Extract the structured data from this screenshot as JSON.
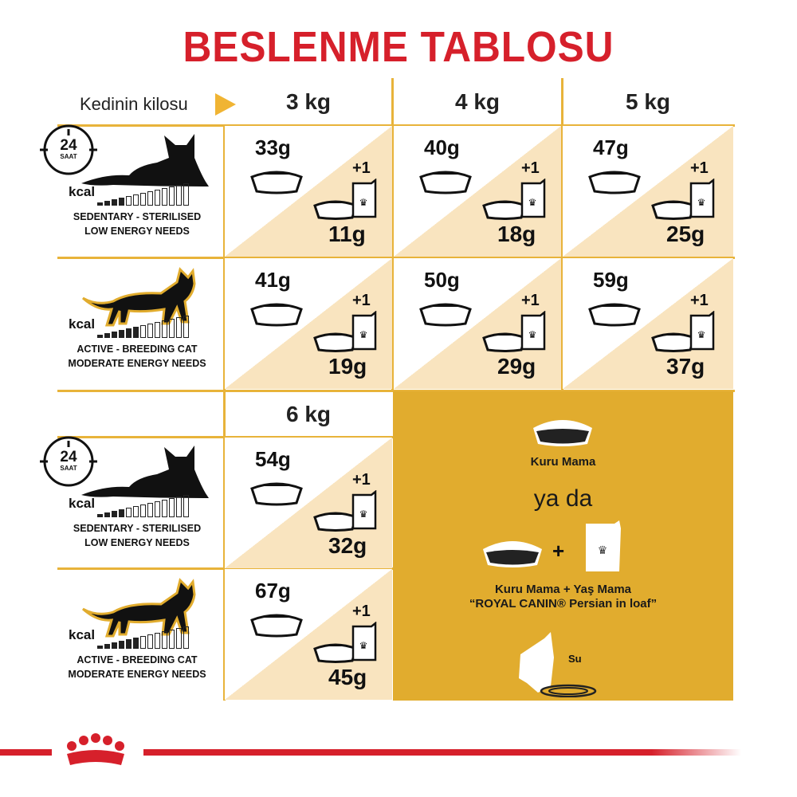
{
  "title": "BESLENME TABLOSU",
  "weight_label": "Kedinin kilosu",
  "weights": [
    "3 kg",
    "4 kg",
    "5 kg",
    "6 kg"
  ],
  "plus_label": "+1",
  "profiles": {
    "sedentary": {
      "clock": "24",
      "clock_unit": "SAAT",
      "kcal": "kcal",
      "line1": "SEDENTARY - STERILISED",
      "line2": "LOW ENERGY NEEDS",
      "energy_level": 4,
      "energy_total": 13
    },
    "active": {
      "kcal": "kcal",
      "line1": "ACTIVE - BREEDING CAT",
      "line2": "MODERATE ENERGY NEEDS",
      "energy_level": 6,
      "energy_total": 13
    }
  },
  "table": {
    "sedentary": [
      {
        "dry": "33g",
        "wet": "11g"
      },
      {
        "dry": "40g",
        "wet": "18g"
      },
      {
        "dry": "47g",
        "wet": "25g"
      },
      {
        "dry": "54g",
        "wet": "32g"
      }
    ],
    "active": [
      {
        "dry": "41g",
        "wet": "19g"
      },
      {
        "dry": "50g",
        "wet": "29g"
      },
      {
        "dry": "59g",
        "wet": "37g"
      },
      {
        "dry": "67g",
        "wet": "45g"
      }
    ]
  },
  "legend": {
    "dry": "Kuru Mama",
    "or": "ya da",
    "plus": "+",
    "mixed": "Kuru Mama + Yaş Mama",
    "product": "“ROYAL CANIN® Persian in loaf”",
    "water": "Su"
  },
  "colors": {
    "title": "#d6202b",
    "grid": "#e8b33a",
    "triangle": "#f9e4bf",
    "legend_bg": "#e1ac2e"
  },
  "logo": "Royal Canin"
}
